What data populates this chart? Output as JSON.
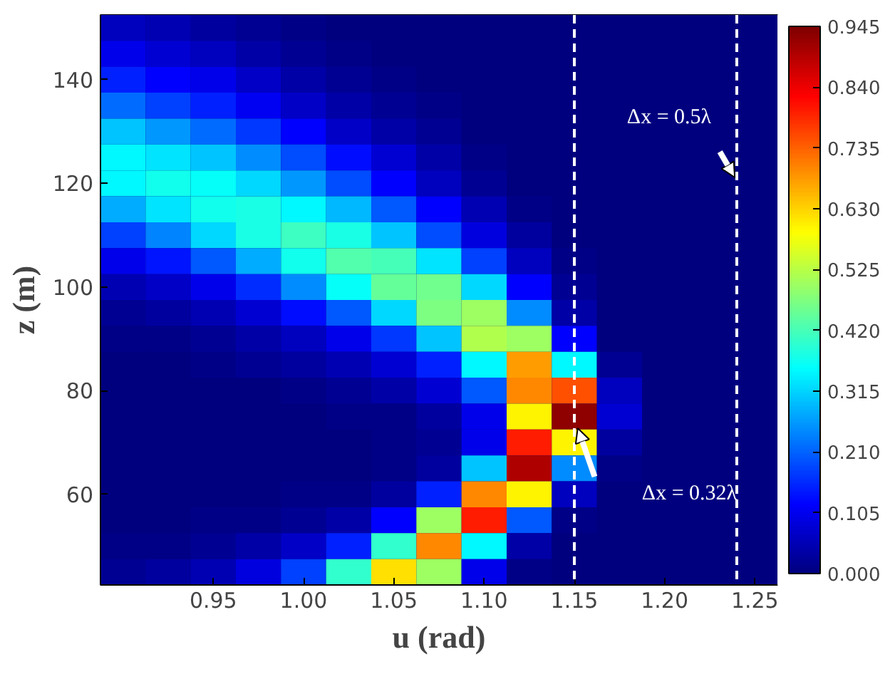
{
  "chart_data": {
    "type": "heatmap",
    "xlabel": "u (rad)",
    "ylabel": "z (m)",
    "categories": [
      null,
      null,
      "0.95",
      null,
      "1.00",
      null,
      "1.05",
      null,
      "1.10",
      null,
      "1.15",
      null,
      "1.20",
      null,
      "1.25"
    ],
    "y_categories": [
      null,
      null,
      "140",
      null,
      null,
      null,
      "120",
      null,
      null,
      null,
      "100",
      null,
      null,
      null,
      "80",
      null,
      null,
      null,
      "60",
      null,
      null,
      null
    ],
    "cells": [
      [
        0.06,
        0.05,
        0.03,
        0.02,
        0.01,
        0,
        0,
        0,
        0,
        0,
        0,
        0,
        0,
        0,
        0
      ],
      [
        0.1,
        0.08,
        0.06,
        0.04,
        0.02,
        0.01,
        0,
        0,
        0,
        0,
        0,
        0,
        0,
        0,
        0
      ],
      [
        0.15,
        0.12,
        0.1,
        0.07,
        0.04,
        0.02,
        0.01,
        0,
        0,
        0,
        0,
        0,
        0,
        0,
        0
      ],
      [
        0.22,
        0.18,
        0.15,
        0.11,
        0.07,
        0.04,
        0.02,
        0.01,
        0,
        0,
        0,
        0,
        0,
        0,
        0
      ],
      [
        0.3,
        0.26,
        0.22,
        0.17,
        0.12,
        0.07,
        0.04,
        0.02,
        0,
        0,
        0,
        0,
        0,
        0,
        0
      ],
      [
        0.35,
        0.33,
        0.3,
        0.25,
        0.19,
        0.13,
        0.08,
        0.04,
        0.01,
        0,
        0,
        0,
        0,
        0,
        0
      ],
      [
        0.35,
        0.37,
        0.36,
        0.32,
        0.26,
        0.19,
        0.12,
        0.06,
        0.02,
        0,
        0,
        0,
        0,
        0,
        0
      ],
      [
        0.28,
        0.33,
        0.37,
        0.38,
        0.35,
        0.29,
        0.2,
        0.12,
        0.05,
        0.01,
        0,
        0,
        0,
        0,
        0
      ],
      [
        0.18,
        0.24,
        0.32,
        0.38,
        0.41,
        0.38,
        0.3,
        0.19,
        0.09,
        0.03,
        0,
        0,
        0,
        0,
        0
      ],
      [
        0.1,
        0.14,
        0.2,
        0.28,
        0.37,
        0.43,
        0.42,
        0.33,
        0.18,
        0.06,
        0.01,
        0,
        0,
        0,
        0
      ],
      [
        0.05,
        0.07,
        0.1,
        0.16,
        0.25,
        0.36,
        0.45,
        0.46,
        0.32,
        0.12,
        0.02,
        0,
        0,
        0,
        0
      ],
      [
        0.02,
        0.03,
        0.05,
        0.08,
        0.13,
        0.2,
        0.32,
        0.47,
        0.5,
        0.25,
        0.04,
        0,
        0,
        0,
        0
      ],
      [
        0.01,
        0.01,
        0.02,
        0.04,
        0.06,
        0.1,
        0.17,
        0.3,
        0.52,
        0.5,
        0.12,
        0,
        0,
        0,
        0
      ],
      [
        0,
        0,
        0.01,
        0.02,
        0.03,
        0.05,
        0.08,
        0.15,
        0.35,
        0.68,
        0.35,
        0.02,
        0,
        0,
        0
      ],
      [
        0,
        0,
        0,
        0,
        0.01,
        0.02,
        0.04,
        0.08,
        0.2,
        0.7,
        0.75,
        0.06,
        0,
        0,
        0
      ],
      [
        0,
        0,
        0,
        0,
        0,
        0.01,
        0.01,
        0.03,
        0.1,
        0.6,
        0.93,
        0.08,
        0,
        0,
        0
      ],
      [
        0,
        0,
        0,
        0,
        0,
        0,
        0.01,
        0.02,
        0.1,
        0.8,
        0.6,
        0.03,
        0,
        0,
        0
      ],
      [
        0,
        0,
        0,
        0,
        0,
        0,
        0.01,
        0.03,
        0.3,
        0.9,
        0.25,
        0.01,
        0,
        0,
        0
      ],
      [
        0,
        0,
        0,
        0,
        0.01,
        0.01,
        0.03,
        0.15,
        0.7,
        0.6,
        0.06,
        0,
        0,
        0,
        0
      ],
      [
        0,
        0,
        0.01,
        0.01,
        0.02,
        0.04,
        0.12,
        0.5,
        0.8,
        0.2,
        0.01,
        0,
        0,
        0,
        0
      ],
      [
        0.01,
        0.01,
        0.02,
        0.04,
        0.07,
        0.15,
        0.4,
        0.7,
        0.35,
        0.04,
        0,
        0,
        0,
        0,
        0
      ],
      [
        0.02,
        0.03,
        0.05,
        0.09,
        0.18,
        0.4,
        0.62,
        0.5,
        0.1,
        0.01,
        0,
        0,
        0,
        0,
        0
      ]
    ],
    "clim": [
      0,
      0.945
    ],
    "cticks": [
      {
        "value": 0,
        "label": "0.000"
      },
      {
        "value": 0.105,
        "label": "0.105"
      },
      {
        "value": 0.21,
        "label": "0.210"
      },
      {
        "value": 0.315,
        "label": "0.315"
      },
      {
        "value": 0.42,
        "label": "0.420"
      },
      {
        "value": 0.525,
        "label": "0.525"
      },
      {
        "value": 0.63,
        "label": "0.630"
      },
      {
        "value": 0.735,
        "label": "0.735"
      },
      {
        "value": 0.84,
        "label": "0.840"
      },
      {
        "value": 0.945,
        "label": "0.945"
      }
    ],
    "ref_lines": [
      {
        "axis": "x",
        "value": "1.15",
        "color": "#ffffff",
        "line_style": "dashed"
      }
    ],
    "annotations": [
      "Δx = 0.5λ",
      "Δx = 0.32λ"
    ]
  }
}
